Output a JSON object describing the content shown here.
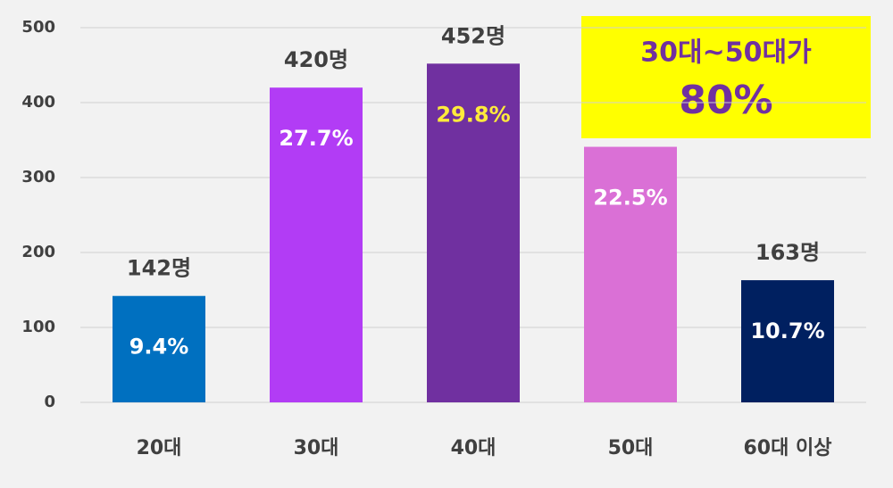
{
  "chart_data": {
    "type": "bar",
    "categories": [
      "20대",
      "30대",
      "40대",
      "50대",
      "60대 이상"
    ],
    "values": [
      142,
      420,
      452,
      341,
      163
    ],
    "value_labels": [
      "142명",
      "420명",
      "452명",
      null,
      "163명"
    ],
    "shares": [
      9.4,
      27.7,
      29.8,
      22.5,
      10.7
    ],
    "share_labels": [
      "9.4%",
      "27.7%",
      "29.8%",
      "22.5%",
      "10.7%"
    ],
    "colors": [
      "#0070c0",
      "#b23cf5",
      "#7030a0",
      "#da70d6",
      "#002060"
    ],
    "share_label_colors": [
      "#ffffff",
      "#ffffff",
      "#ffeb3b",
      "#ffffff",
      "#ffffff"
    ],
    "ylim": [
      0,
      500
    ],
    "yticks": [
      0,
      100,
      200,
      300,
      400,
      500
    ],
    "grid": true,
    "annotation": {
      "lines": [
        "30대~50대가",
        "80%"
      ],
      "background": "#ffff00",
      "color": "#7030a0"
    }
  }
}
